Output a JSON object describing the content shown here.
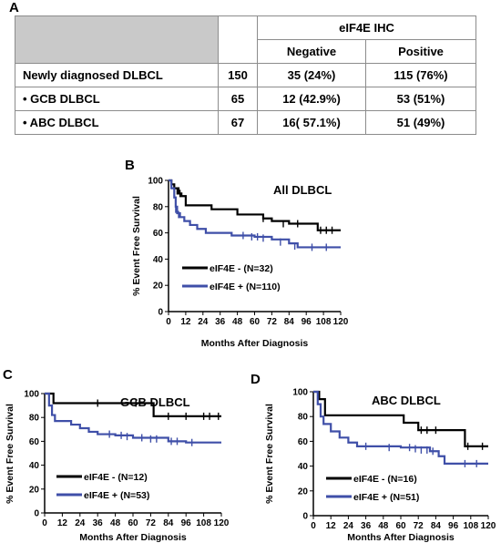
{
  "panels": {
    "a": "A",
    "b": "B",
    "c": "C",
    "d": "D"
  },
  "table": {
    "group_header": "eIF4E IHC",
    "col_negative": "Negative",
    "col_positive": "Positive",
    "rows": [
      {
        "label": "Newly diagnosed DLBCL",
        "n": "150",
        "negative": "35 (24%)",
        "positive": "115 (76%)"
      },
      {
        "label": "•  GCB DLBCL",
        "n": "65",
        "negative": "12 (42.9%)",
        "positive": "53 (51%)"
      },
      {
        "label": "•  ABC DLBCL",
        "n": "67",
        "negative": "16( 57.1%)",
        "positive": "51 (49%)"
      }
    ]
  },
  "chart_data": [
    {
      "type": "line",
      "title": "All DLBCL",
      "xlabel": "Months After Diagnosis",
      "ylabel": "% Event Free Survival",
      "xlim": [
        0,
        120
      ],
      "ylim": [
        0,
        100
      ],
      "xticks": [
        0,
        12,
        24,
        36,
        48,
        60,
        72,
        84,
        96,
        108,
        120
      ],
      "yticks": [
        0,
        20,
        40,
        60,
        80,
        100
      ],
      "legend_position": "lower-left",
      "series": [
        {
          "name": "eIF4E - (N=32)",
          "color": "#000000",
          "steps": [
            [
              0,
              100
            ],
            [
              2,
              97
            ],
            [
              4,
              94
            ],
            [
              7,
              90
            ],
            [
              9,
              88
            ],
            [
              12,
              81
            ],
            [
              24,
              81
            ],
            [
              30,
              78
            ],
            [
              42,
              78
            ],
            [
              48,
              74
            ],
            [
              60,
              74
            ],
            [
              66,
              71
            ],
            [
              72,
              69
            ],
            [
              84,
              67
            ],
            [
              96,
              67
            ],
            [
              104,
              62
            ],
            [
              120,
              62
            ]
          ],
          "censors": [
            [
              4,
              94
            ],
            [
              6,
              92
            ],
            [
              8,
              90
            ],
            [
              66,
              71
            ],
            [
              80,
              67
            ],
            [
              90,
              67
            ],
            [
              106,
              62
            ],
            [
              110,
              62
            ],
            [
              114,
              62
            ]
          ]
        },
        {
          "name": "eIF4E + (N=110)",
          "color": "#3f4fa8",
          "steps": [
            [
              0,
              100
            ],
            [
              2,
              94
            ],
            [
              4,
              87
            ],
            [
              5,
              80
            ],
            [
              6,
              75
            ],
            [
              8,
              72
            ],
            [
              11,
              69
            ],
            [
              15,
              66
            ],
            [
              20,
              63
            ],
            [
              26,
              60
            ],
            [
              36,
              60
            ],
            [
              44,
              58
            ],
            [
              60,
              57
            ],
            [
              72,
              55
            ],
            [
              84,
              52
            ],
            [
              90,
              49
            ],
            [
              120,
              49
            ]
          ],
          "censors": [
            [
              5,
              78
            ],
            [
              7,
              74
            ],
            [
              52,
              58
            ],
            [
              58,
              57
            ],
            [
              62,
              57
            ],
            [
              66,
              56
            ],
            [
              78,
              53
            ],
            [
              88,
              50
            ],
            [
              100,
              49
            ],
            [
              110,
              49
            ]
          ]
        }
      ]
    },
    {
      "type": "line",
      "title": "GCB DLBCL",
      "xlabel": "Months After Diagnosis",
      "ylabel": "% Event Free Survival",
      "xlim": [
        0,
        120
      ],
      "ylim": [
        0,
        100
      ],
      "xticks": [
        0,
        12,
        24,
        36,
        48,
        60,
        72,
        84,
        96,
        108,
        120
      ],
      "yticks": [
        0,
        20,
        40,
        60,
        80,
        100
      ],
      "legend_position": "lower-left",
      "series": [
        {
          "name": "eIF4E - (N=12)",
          "color": "#000000",
          "steps": [
            [
              0,
              100
            ],
            [
              6,
              92
            ],
            [
              72,
              92
            ],
            [
              74,
              81
            ],
            [
              120,
              81
            ]
          ],
          "censors": [
            [
              36,
              92
            ],
            [
              62,
              92
            ],
            [
              84,
              81
            ],
            [
              96,
              81
            ],
            [
              108,
              81
            ],
            [
              112,
              81
            ],
            [
              118,
              81
            ]
          ]
        },
        {
          "name": "eIF4E + (N=53)",
          "color": "#3f4fa8",
          "steps": [
            [
              0,
              100
            ],
            [
              3,
              90
            ],
            [
              5,
              82
            ],
            [
              7,
              77
            ],
            [
              18,
              74
            ],
            [
              24,
              71
            ],
            [
              30,
              68
            ],
            [
              36,
              66
            ],
            [
              48,
              65
            ],
            [
              60,
              63
            ],
            [
              84,
              60
            ],
            [
              96,
              59
            ],
            [
              120,
              59
            ]
          ],
          "censors": [
            [
              44,
              66
            ],
            [
              52,
              65
            ],
            [
              56,
              64
            ],
            [
              66,
              63
            ],
            [
              72,
              62
            ],
            [
              76,
              62
            ],
            [
              86,
              60
            ],
            [
              90,
              60
            ],
            [
              100,
              59
            ]
          ]
        }
      ]
    },
    {
      "type": "line",
      "title": "ABC DLBCL",
      "xlabel": "Months After Diagnosis",
      "ylabel": "% Event Free Survival",
      "xlim": [
        0,
        120
      ],
      "ylim": [
        0,
        100
      ],
      "xticks": [
        0,
        12,
        24,
        36,
        48,
        60,
        72,
        84,
        96,
        108,
        120
      ],
      "yticks": [
        0,
        20,
        40,
        60,
        80,
        100
      ],
      "legend_position": "lower-left",
      "series": [
        {
          "name": "eIF4E - (N=16)",
          "color": "#000000",
          "steps": [
            [
              0,
              100
            ],
            [
              4,
              94
            ],
            [
              8,
              81
            ],
            [
              60,
              81
            ],
            [
              62,
              75
            ],
            [
              72,
              69
            ],
            [
              96,
              69
            ],
            [
              104,
              56
            ],
            [
              120,
              56
            ]
          ],
          "censors": [
            [
              74,
              69
            ],
            [
              78,
              69
            ],
            [
              84,
              69
            ],
            [
              106,
              56
            ],
            [
              116,
              56
            ]
          ]
        },
        {
          "name": "eIF4E + (N=51)",
          "color": "#3f4fa8",
          "steps": [
            [
              0,
              100
            ],
            [
              3,
              90
            ],
            [
              5,
              80
            ],
            [
              7,
              74
            ],
            [
              12,
              68
            ],
            [
              18,
              63
            ],
            [
              24,
              59
            ],
            [
              30,
              56
            ],
            [
              60,
              55
            ],
            [
              80,
              52
            ],
            [
              86,
              48
            ],
            [
              90,
              42
            ],
            [
              120,
              42
            ]
          ],
          "censors": [
            [
              36,
              56
            ],
            [
              52,
              55
            ],
            [
              66,
              55
            ],
            [
              70,
              54
            ],
            [
              74,
              53
            ],
            [
              78,
              53
            ],
            [
              82,
              52
            ],
            [
              104,
              42
            ],
            [
              112,
              42
            ]
          ]
        }
      ]
    }
  ]
}
